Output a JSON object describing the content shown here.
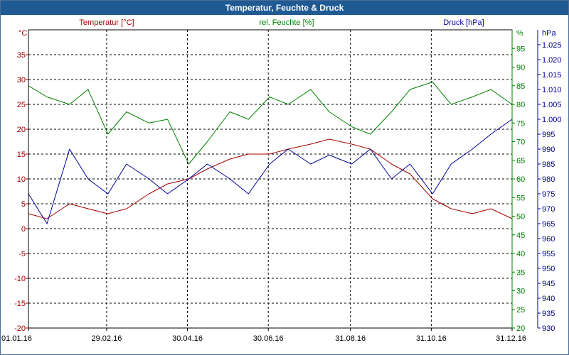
{
  "window": {
    "title": "Temperatur, Feuchte & Druck"
  },
  "colors": {
    "temperature": "#a00000",
    "humidity": "#008000",
    "pressure": "#000099",
    "titlebar": "#1f5a93",
    "grid": "#000000"
  },
  "chart_data": {
    "type": "line",
    "title": "Temperatur, Feuchte & Druck",
    "grid": true,
    "x_ticks": [
      "01.01.16",
      "29.02.16",
      "30.04.16",
      "30.06.16",
      "31.08.16",
      "31.10.16",
      "31.12.16"
    ],
    "axes": {
      "temperature": {
        "label": "Temperatur [°C]",
        "unit": "°C",
        "ylim": [
          -20,
          40
        ],
        "ticks": [
          "-20",
          "-15",
          "-10",
          "-5",
          "0",
          "5",
          "10",
          "15",
          "20",
          "25",
          "30",
          "35"
        ]
      },
      "humidity": {
        "label": "rel. Feuchte [%]",
        "unit": "%",
        "ylim": [
          20,
          100
        ],
        "ticks": [
          "20",
          "25",
          "30",
          "35",
          "40",
          "45",
          "50",
          "55",
          "60",
          "65",
          "70",
          "75",
          "80",
          "85",
          "90",
          "95"
        ]
      },
      "pressure": {
        "label": "Druck [hPa]",
        "unit": "hPa",
        "ylim": [
          930,
          1030
        ],
        "ticks": [
          "930",
          "935",
          "940",
          "945",
          "950",
          "955",
          "960",
          "965",
          "970",
          "975",
          "980",
          "985",
          "990",
          "995",
          "1.000",
          "1.005",
          "1.010",
          "1.015",
          "1.020",
          "1.025"
        ]
      }
    },
    "series": [
      {
        "name": "Temperatur [°C]",
        "axis": "temperature",
        "color": "#a00000",
        "x": [
          "01.01.16",
          "15.01.16",
          "01.02.16",
          "15.02.16",
          "01.03.16",
          "15.03.16",
          "01.04.16",
          "15.04.16",
          "01.05.16",
          "15.05.16",
          "01.06.16",
          "15.06.16",
          "01.07.16",
          "15.07.16",
          "01.08.16",
          "15.08.16",
          "01.09.16",
          "15.09.16",
          "01.10.16",
          "15.10.16",
          "01.11.16",
          "15.11.16",
          "01.12.16",
          "15.12.16",
          "31.12.16"
        ],
        "values": [
          3,
          2,
          5,
          4,
          3,
          4,
          7,
          9,
          10,
          12,
          14,
          15,
          15,
          16,
          17,
          18,
          17,
          16,
          13,
          11,
          6,
          4,
          3,
          4,
          2
        ]
      },
      {
        "name": "rel. Feuchte [%]",
        "axis": "humidity",
        "color": "#008000",
        "x": [
          "01.01.16",
          "15.01.16",
          "01.02.16",
          "15.02.16",
          "01.03.16",
          "15.03.16",
          "01.04.16",
          "15.04.16",
          "01.05.16",
          "15.05.16",
          "01.06.16",
          "15.06.16",
          "01.07.16",
          "15.07.16",
          "01.08.16",
          "15.08.16",
          "01.09.16",
          "15.09.16",
          "01.10.16",
          "15.10.16",
          "01.11.16",
          "15.11.16",
          "01.12.16",
          "15.12.16",
          "31.12.16"
        ],
        "values": [
          85,
          82,
          80,
          84,
          72,
          78,
          75,
          76,
          64,
          70,
          78,
          76,
          82,
          80,
          84,
          78,
          74,
          72,
          78,
          84,
          86,
          80,
          82,
          84,
          80
        ]
      },
      {
        "name": "Druck [hPa]",
        "axis": "pressure",
        "color": "#000099",
        "x": [
          "01.01.16",
          "15.01.16",
          "01.02.16",
          "15.02.16",
          "01.03.16",
          "15.03.16",
          "01.04.16",
          "15.04.16",
          "01.05.16",
          "15.05.16",
          "01.06.16",
          "15.06.16",
          "01.07.16",
          "15.07.16",
          "01.08.16",
          "15.08.16",
          "01.09.16",
          "15.09.16",
          "01.10.16",
          "15.10.16",
          "01.11.16",
          "15.11.16",
          "01.12.16",
          "15.12.16",
          "31.12.16"
        ],
        "values": [
          975,
          965,
          990,
          980,
          975,
          985,
          980,
          975,
          980,
          985,
          980,
          975,
          985,
          990,
          985,
          988,
          985,
          990,
          980,
          985,
          975,
          985,
          990,
          995,
          1000
        ]
      }
    ]
  }
}
